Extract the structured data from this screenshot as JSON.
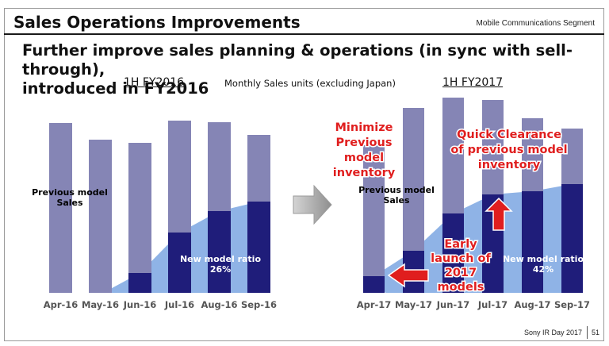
{
  "header": {
    "title": "Sales Operations Improvements",
    "segment": "Mobile Communications Segment"
  },
  "headline": {
    "line1": "Further improve sales planning & operations (in sync with sell-through),",
    "line2": "introduced in FY2016"
  },
  "caption": "Monthly Sales units (excluding Japan)",
  "footer": {
    "event": "Sony IR Day 2017",
    "page": "51"
  },
  "colors": {
    "total_bar": "#8585b5",
    "new_model_bar": "#1f1d7a",
    "new_model_area": "#8fb3e6",
    "callout_red": "#e01e1e",
    "arrow_gray": "#a9a9a9"
  },
  "chart_data": [
    {
      "type": "bar",
      "period": "1H FY2016",
      "categories": [
        "Apr-16",
        "May-16",
        "Jun-16",
        "Jul-16",
        "Aug-16",
        "Sep-16"
      ],
      "series": [
        {
          "name": "Previous model Sales",
          "values": [
            214,
            193,
            189,
            217,
            215,
            199
          ]
        },
        {
          "name": "New model",
          "values": [
            0,
            0,
            25,
            76,
            103,
            115
          ]
        }
      ],
      "ylim": [
        0,
        230
      ],
      "annotations": {
        "previous_label": "Previous model\nSales",
        "ratio_label": "New model ratio\n26%"
      }
    },
    {
      "type": "bar",
      "period": "1H FY2017",
      "categories": [
        "Apr-17",
        "May-17",
        "Jun-17",
        "Jul-17",
        "Aug-17",
        "Sep-17"
      ],
      "series": [
        {
          "name": "Previous model Sales",
          "values": [
            186,
            233,
            246,
            243,
            220,
            207
          ]
        },
        {
          "name": "New model",
          "values": [
            21,
            53,
            100,
            124,
            128,
            137
          ]
        }
      ],
      "ylim": [
        0,
        260
      ],
      "annotations": {
        "previous_label": "Previous model\nSales",
        "ratio_label": "New model ratio\n42%",
        "minimize": "Minimize\nPrevious\nmodel\ninventory",
        "quick_clearance": "Quick Clearance\nof previous model\ninventory",
        "early_launch": "Early\nlaunch of\n2017\nmodels"
      }
    }
  ]
}
